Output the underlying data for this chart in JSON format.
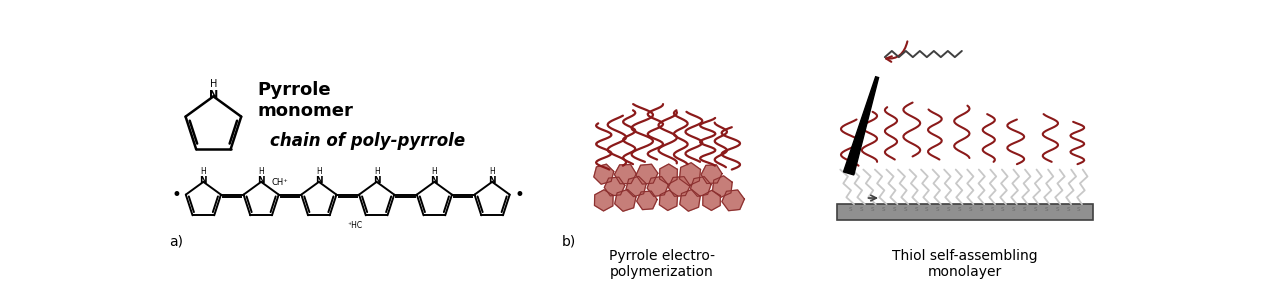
{
  "fig_width": 12.63,
  "fig_height": 2.9,
  "dpi": 100,
  "background_color": "#ffffff",
  "label_a": "a)",
  "label_b": "b)",
  "text_pyrrole_monomer": "Pyrrole\nmonomer",
  "text_chain": "chain of poly-pyrrole",
  "text_pyrrole_electro": "Pyrrole electro-\npolymerization",
  "text_thiol": "Thiol self-assembling\nmonolayer",
  "font_size_labels": 10,
  "font_size_chain": 11,
  "font_size_caption": 10,
  "dark_red": "#8B1A1A",
  "blob_fill": "#C0706A",
  "blob_edge": "#8B3030",
  "dark_gray": "#404040",
  "mid_gray": "#707070",
  "light_gray": "#B0B0B0",
  "black": "#000000",
  "white": "#ffffff",
  "sam_color": "#C8C8C8",
  "electrode_color": "#909090"
}
